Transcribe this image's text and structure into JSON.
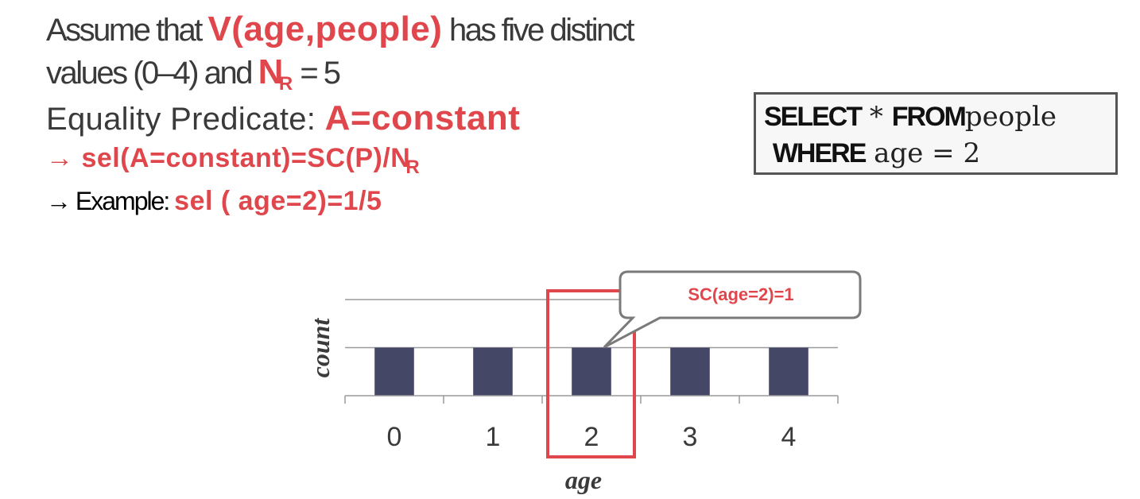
{
  "text": {
    "l1_pre": "Assume that ",
    "l1_red": "V(age,people)",
    "l1_post": "  has five  distinct",
    "l2_pre": "values (0–4) and ",
    "l2_red": "N",
    "l2_sub": "R",
    "l2_post": " = 5",
    "l3_pre": "Equality Predicate: ",
    "l3_red": "A=constant",
    "l4_red": "→ sel(A=constant)=SC(P)/N",
    "l4_sub": "R",
    "l5_pre": "→ Example: ",
    "l5_red": "sel ( age=2)=1/5"
  },
  "sql": {
    "kw_select": "SELECT",
    "star": " * ",
    "kw_from": "FROM",
    "table": "people",
    "kw_where": "WHERE",
    "cond": " age = 2"
  },
  "callout": "SC(age=2)=1",
  "colors": {
    "accent": "#e0474c",
    "bar": "#454766",
    "text": "#3a3a3a"
  },
  "chart_data": {
    "type": "bar",
    "categories": [
      "0",
      "1",
      "2",
      "3",
      "4"
    ],
    "values": [
      1,
      1,
      1,
      1,
      1
    ],
    "xlabel": "age",
    "ylabel": "count",
    "ylim": [
      0,
      2.0
    ],
    "grid": true,
    "highlight_category": "2"
  }
}
